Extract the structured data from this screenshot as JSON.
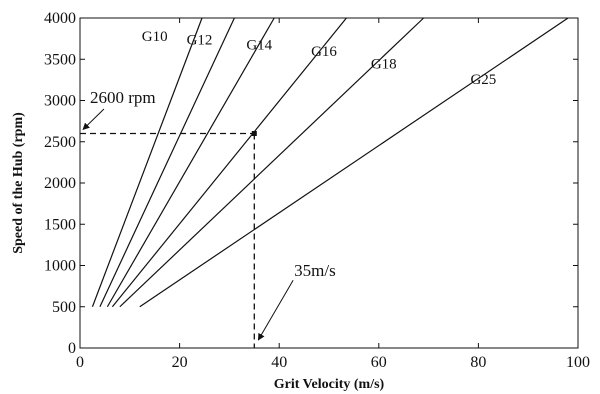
{
  "chart_data": {
    "type": "line",
    "xlabel": "Grit Velocity (m/s)",
    "ylabel": "Speed of the Hub (rpm)",
    "xlim": [
      0,
      100
    ],
    "ylim": [
      0,
      4000
    ],
    "xticks": [
      0,
      20,
      40,
      60,
      80,
      100
    ],
    "yticks": [
      0,
      500,
      1000,
      1500,
      2000,
      2500,
      3000,
      3500,
      4000
    ],
    "grid": false,
    "series": [
      {
        "name": "G10",
        "x": [
          2.5,
          24.5
        ],
        "y": [
          500,
          4000
        ]
      },
      {
        "name": "G12",
        "x": [
          4.0,
          31.0
        ],
        "y": [
          500,
          4000
        ]
      },
      {
        "name": "G14",
        "x": [
          5.5,
          39.0
        ],
        "y": [
          500,
          4000
        ]
      },
      {
        "name": "G16",
        "x": [
          6.5,
          53.5
        ],
        "y": [
          500,
          4000
        ]
      },
      {
        "name": "G18",
        "x": [
          8.0,
          69.0
        ],
        "y": [
          500,
          4000
        ]
      },
      {
        "name": "G25",
        "x": [
          12.0,
          98.0
        ],
        "y": [
          500,
          4000
        ]
      }
    ],
    "series_labels": [
      {
        "text": "G10",
        "x": 15,
        "y": 3720
      },
      {
        "text": "G12",
        "x": 24,
        "y": 3680
      },
      {
        "text": "G14",
        "x": 36,
        "y": 3620
      },
      {
        "text": "G16",
        "x": 49,
        "y": 3540
      },
      {
        "text": "G18",
        "x": 61,
        "y": 3390
      },
      {
        "text": "G25",
        "x": 81,
        "y": 3200
      }
    ],
    "annotations": [
      {
        "text": "2600 rpm",
        "x": 35,
        "y": 2600,
        "label_x": 2,
        "label_y": 2970
      },
      {
        "text": "35m/s",
        "x": 35,
        "y": 0,
        "label_x": 43,
        "label_y": 870
      }
    ]
  }
}
